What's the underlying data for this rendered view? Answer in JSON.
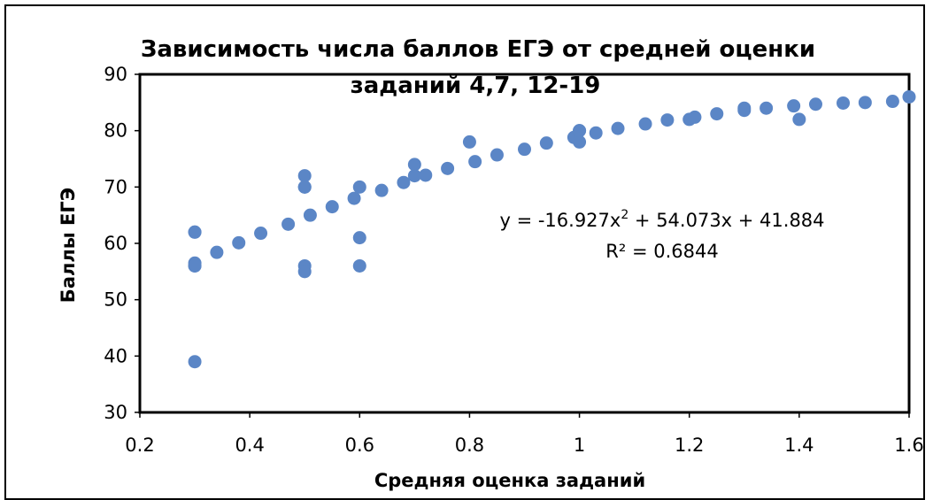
{
  "chart_data": {
    "type": "scatter",
    "title_lines": [
      "Зависимость числа баллов ЕГЭ от средней оценки",
      "заданий 4,7, 12-19"
    ],
    "xlabel": "Средняя оценка заданий",
    "ylabel": "Баллы ЕГЭ",
    "xlim": [
      0.2,
      1.6
    ],
    "ylim": [
      30,
      90
    ],
    "xticks": [
      "0.2",
      "0.4",
      "0.6",
      "0.8",
      "1",
      "1.2",
      "1.4",
      "1.6"
    ],
    "yticks": [
      "30",
      "40",
      "50",
      "60",
      "70",
      "80",
      "90"
    ],
    "marker_color": "#5B86C6",
    "grid": "none",
    "legend": "none",
    "trendline": {
      "type": "polynomial-2",
      "equation_prefix": "y = -16.927x",
      "equation_sup": "2",
      "equation_suffix": " + 54.073x + 41.884",
      "r2": "R² = 0.6844",
      "a": -16.927,
      "b": 54.073,
      "c": 41.884
    },
    "x": [
      0.3,
      0.3,
      0.3,
      0.3,
      0.3,
      0.3,
      0.34,
      0.38,
      0.42,
      0.47,
      0.5,
      0.5,
      0.5,
      0.5,
      0.5,
      0.51,
      0.55,
      0.59,
      0.6,
      0.6,
      0.6,
      0.64,
      0.68,
      0.7,
      0.7,
      0.72,
      0.76,
      0.8,
      0.81,
      0.85,
      0.9,
      0.94,
      0.99,
      1.0,
      1.0,
      1.0,
      1.03,
      1.07,
      1.12,
      1.16,
      1.2,
      1.21,
      1.25,
      1.3,
      1.3,
      1.34,
      1.39,
      1.4,
      1.43,
      1.48,
      1.52,
      1.57,
      1.6
    ],
    "y": [
      62,
      62,
      56.5,
      56,
      39,
      56,
      58.4,
      60.1,
      61.8,
      63.4,
      72,
      70,
      56,
      55,
      70,
      65,
      66.5,
      68,
      70,
      61,
      56,
      69.4,
      70.8,
      74,
      72,
      72.1,
      73.3,
      78,
      74.5,
      75.7,
      76.7,
      77.8,
      78.8,
      80,
      78,
      80,
      79.6,
      80.4,
      81.2,
      81.9,
      82,
      82.4,
      83,
      84,
      83.6,
      84,
      84.4,
      82,
      84.7,
      84.9,
      85,
      85.2,
      86
    ]
  }
}
